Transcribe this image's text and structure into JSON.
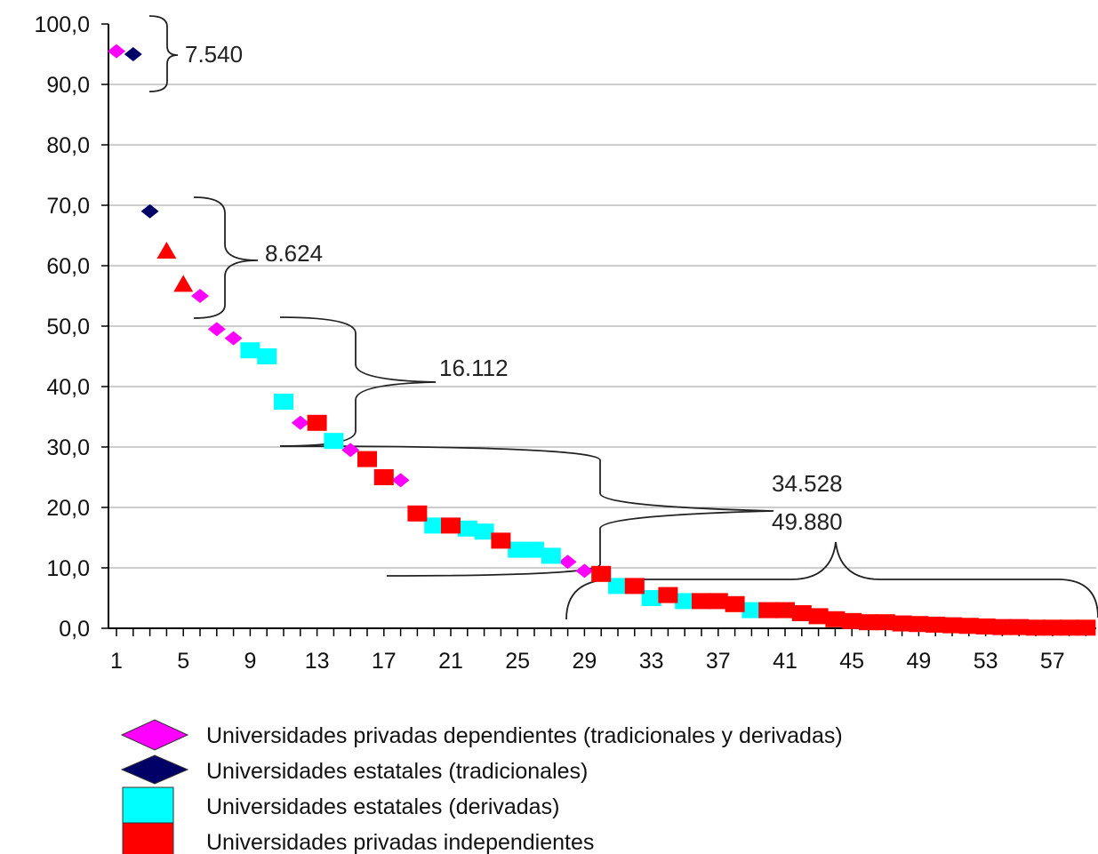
{
  "chart_data": {
    "type": "scatter",
    "title": "",
    "xlabel": "",
    "ylabel": "",
    "xlim": [
      0,
      59
    ],
    "ylim": [
      0,
      100
    ],
    "x_tick_labels": [
      "1",
      "5",
      "9",
      "13",
      "17",
      "21",
      "25",
      "29",
      "33",
      "37",
      "41",
      "45",
      "49",
      "53",
      "57"
    ],
    "y_tick_labels": [
      "0,0",
      "10,0",
      "20,0",
      "30,0",
      "40,0",
      "50,0",
      "60,0",
      "70,0",
      "80,0",
      "90,0",
      "100,0"
    ],
    "grid": "horizontal",
    "legend_position": "bottom",
    "series": [
      {
        "name": "Universidades privadas dependientes (tradicionales y derivadas)",
        "marker": "diamond",
        "color": "#ff00ff",
        "points": [
          [
            1,
            95.5
          ],
          [
            6,
            55.0
          ],
          [
            7,
            49.5
          ],
          [
            8,
            48.0
          ],
          [
            12,
            34.0
          ],
          [
            15,
            29.5
          ],
          [
            18,
            24.5
          ],
          [
            28,
            11.0
          ],
          [
            29,
            9.5
          ]
        ]
      },
      {
        "name": "Universidades estatales (tradicionales)",
        "marker": "diamond",
        "color": "#000066",
        "points": [
          [
            2,
            95.0
          ],
          [
            3,
            69.0
          ]
        ]
      },
      {
        "name": "",
        "marker": "triangle",
        "color": "#ff0000",
        "points": [
          [
            4,
            62.5
          ],
          [
            5,
            57.0
          ]
        ]
      },
      {
        "name": "Universidades estatales (derivadas)",
        "marker": "square",
        "color": "#00ffff",
        "points": [
          [
            9,
            46.0
          ],
          [
            10,
            45.0
          ],
          [
            11,
            37.5
          ],
          [
            14,
            31.0
          ],
          [
            20,
            17.0
          ],
          [
            22,
            16.5
          ],
          [
            23,
            16.0
          ],
          [
            25,
            13.0
          ],
          [
            26,
            13.0
          ],
          [
            27,
            12.0
          ],
          [
            31,
            7.0
          ],
          [
            33,
            5.0
          ],
          [
            35,
            4.5
          ],
          [
            39,
            3.0
          ]
        ]
      },
      {
        "name": "Universidades privadas independientes",
        "marker": "square",
        "color": "#ff0000",
        "points": [
          [
            13,
            34.0
          ],
          [
            16,
            28.0
          ],
          [
            17,
            25.0
          ],
          [
            19,
            19.0
          ],
          [
            21,
            17.0
          ],
          [
            24,
            14.5
          ],
          [
            30,
            9.0
          ],
          [
            32,
            7.0
          ],
          [
            34,
            5.5
          ],
          [
            36,
            4.5
          ],
          [
            37,
            4.5
          ],
          [
            38,
            4.0
          ],
          [
            40,
            3.0
          ],
          [
            41,
            3.0
          ],
          [
            42,
            2.5
          ],
          [
            43,
            2.0
          ],
          [
            44,
            1.5
          ],
          [
            45,
            1.2
          ],
          [
            46,
            1.0
          ],
          [
            47,
            1.0
          ],
          [
            48,
            0.8
          ],
          [
            49,
            0.7
          ],
          [
            50,
            0.6
          ],
          [
            51,
            0.5
          ],
          [
            52,
            0.4
          ],
          [
            53,
            0.3
          ],
          [
            54,
            0.2
          ],
          [
            55,
            0.2
          ],
          [
            56,
            0.1
          ],
          [
            57,
            0.1
          ],
          [
            58,
            0.1
          ],
          [
            59,
            0.1
          ]
        ]
      }
    ],
    "annotations": [
      "7.540",
      "8.624",
      "16.112",
      "34.528",
      "49.880"
    ]
  }
}
